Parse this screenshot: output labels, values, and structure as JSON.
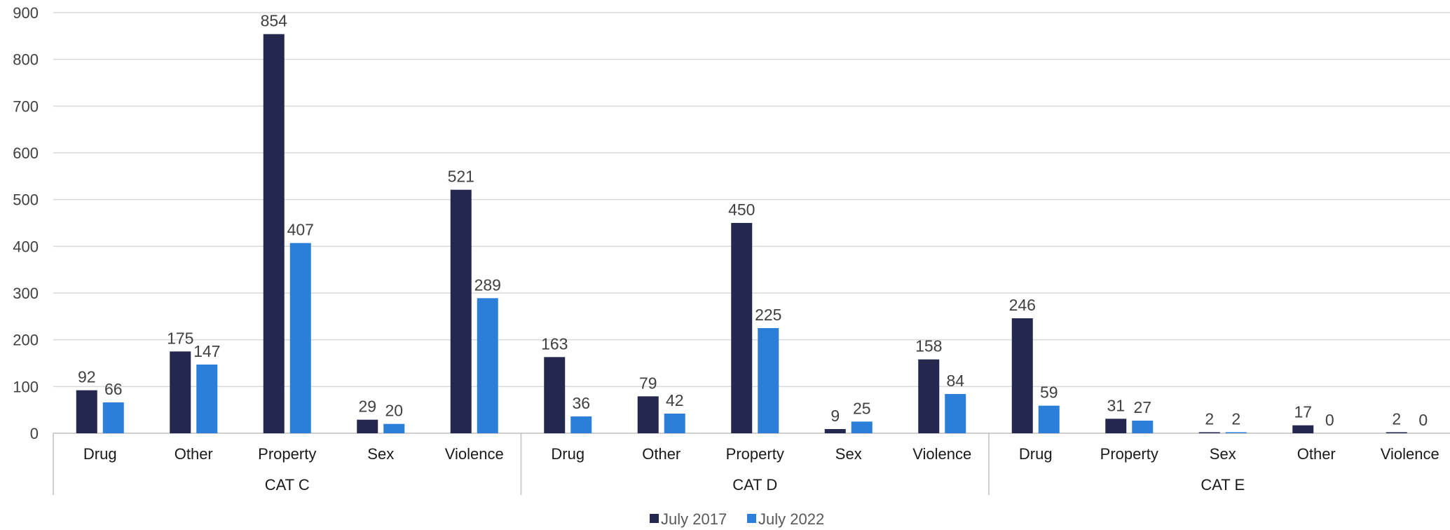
{
  "chart_data": {
    "type": "bar",
    "ylim": [
      0,
      900
    ],
    "yticks": [
      0,
      100,
      200,
      300,
      400,
      500,
      600,
      700,
      800,
      900
    ],
    "grid": true,
    "legend_position": "bottom",
    "groups": [
      {
        "label": "CAT C",
        "categories": [
          "Drug",
          "Other",
          "Property",
          "Sex",
          "Violence"
        ]
      },
      {
        "label": "CAT D",
        "categories": [
          "Drug",
          "Other",
          "Property",
          "Sex",
          "Violence"
        ]
      },
      {
        "label": "CAT E",
        "categories": [
          "Drug",
          "Property",
          "Sex",
          "Other",
          "Violence"
        ]
      }
    ],
    "series": [
      {
        "name": "July 2017",
        "color": "#24284f",
        "values": [
          92,
          175,
          854,
          29,
          521,
          163,
          79,
          450,
          9,
          158,
          246,
          31,
          2,
          17,
          2
        ]
      },
      {
        "name": "July 2022",
        "color": "#2b7fd8",
        "values": [
          66,
          147,
          407,
          20,
          289,
          36,
          42,
          225,
          25,
          84,
          59,
          27,
          2,
          0,
          0
        ]
      }
    ]
  }
}
